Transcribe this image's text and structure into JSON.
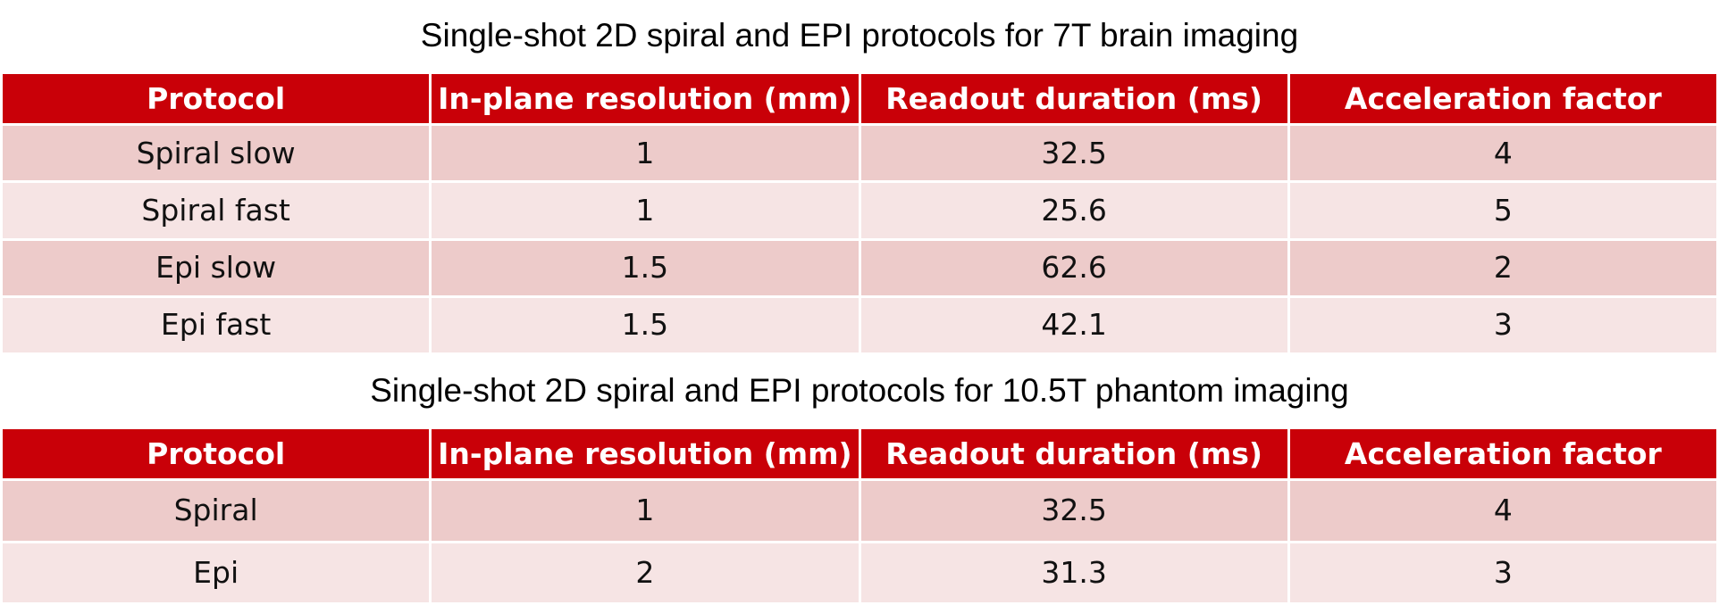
{
  "tables": [
    {
      "title": "Single-shot 2D spiral and EPI protocols for 7T brain imaging",
      "headers": [
        "Protocol",
        "In-plane resolution (mm)",
        "Readout duration (ms)",
        "Acceleration factor"
      ],
      "rows": [
        [
          "Spiral slow",
          "1",
          "32.5",
          "4"
        ],
        [
          "Spiral fast",
          "1",
          "25.6",
          "5"
        ],
        [
          "Epi slow",
          "1.5",
          "62.6",
          "2"
        ],
        [
          "Epi fast",
          "1.5",
          "42.1",
          "3"
        ]
      ]
    },
    {
      "title": "Single-shot 2D spiral and EPI protocols for 10.5T phantom imaging",
      "headers": [
        "Protocol",
        "In-plane resolution (mm)",
        "Readout duration (ms)",
        "Acceleration factor"
      ],
      "rows": [
        [
          "Spiral",
          "1",
          "32.5",
          "4"
        ],
        [
          "Epi",
          "2",
          "31.3",
          "3"
        ]
      ]
    }
  ],
  "colors": {
    "header_bg": "#c90008",
    "row_odd_bg": "#edcbca",
    "row_even_bg": "#f6e4e4"
  }
}
